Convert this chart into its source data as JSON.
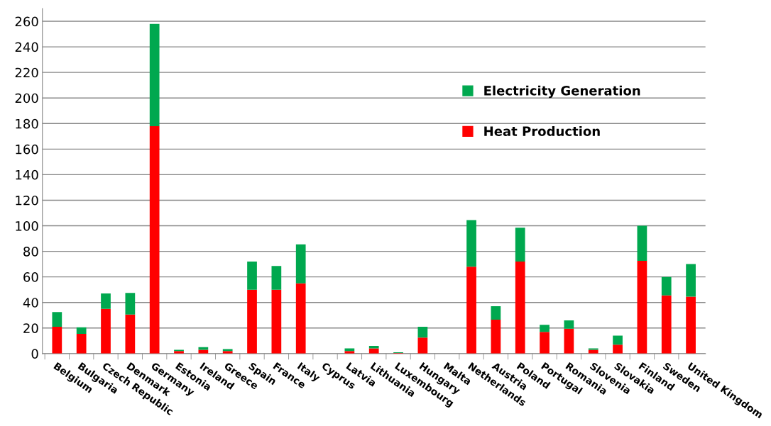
{
  "chart_data": {
    "type": "bar",
    "stacked": true,
    "categories": [
      "Belgium",
      "Bulgaria",
      "Czech Republic",
      "Denmark",
      "Germany",
      "Estonia",
      "Ireland",
      "Greece",
      "Spain",
      "France",
      "Italy",
      "Cyprus",
      "Latvia",
      "Lithuania",
      "Luxembourg",
      "Hungary",
      "Malta",
      "Netherlands",
      "Austria",
      "Poland",
      "Portugal",
      "Romania",
      "Slovenia",
      "Slovakia",
      "Finland",
      "Sweden",
      "United Kingdom"
    ],
    "series": [
      {
        "name": "Heat Production",
        "color": "#ff0000",
        "values": [
          21,
          15.5,
          35,
          30.5,
          178,
          2,
          3,
          2,
          50,
          50,
          55,
          0,
          2,
          4,
          0.5,
          12.5,
          0,
          68,
          26.5,
          72,
          17,
          19.5,
          3,
          7,
          72.5,
          45.5,
          44.5
        ]
      },
      {
        "name": "Electricity Generation",
        "color": "#00a84f",
        "values": [
          11.5,
          5,
          12,
          17,
          80,
          1,
          2,
          1.5,
          22,
          18.5,
          30.5,
          0,
          2,
          2,
          0.5,
          8.5,
          0,
          36.5,
          10.5,
          26.5,
          5.5,
          6.5,
          1,
          7,
          27.5,
          14.5,
          25.5
        ]
      }
    ],
    "ylim": [
      0,
      270
    ],
    "yticks": [
      0,
      20,
      40,
      60,
      80,
      100,
      120,
      140,
      160,
      180,
      200,
      220,
      240,
      260
    ],
    "grid": "y",
    "legend": "right"
  }
}
